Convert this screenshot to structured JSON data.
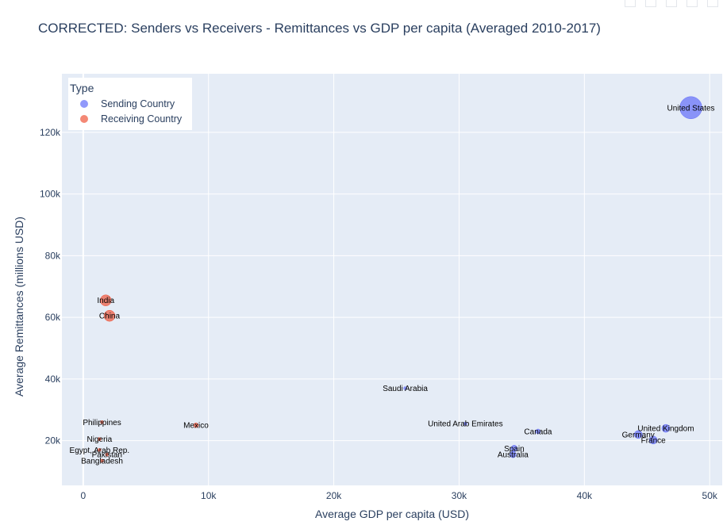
{
  "colors": {
    "plot_bg": "#e5ecf6",
    "grid": "#ffffff",
    "text": "#2a3f5f",
    "sending": "#636efa",
    "receiving": "#ef553b"
  },
  "legend": {
    "title": "Type",
    "items": [
      {
        "label": "Sending Country",
        "color": "#636efa"
      },
      {
        "label": "Receiving Country",
        "color": "#ef553b"
      }
    ]
  },
  "chart_data": {
    "type": "scatter",
    "title": "CORRECTED: Senders vs Receivers - Remittances vs GDP per capita (Averaged 2010-2017)",
    "xlabel": "Average GDP per capita (USD)",
    "ylabel": "Average Remittances (millions USD)",
    "xlim": [
      -1700,
      51000
    ],
    "ylim": [
      5500,
      139000
    ],
    "x_ticks": [
      0,
      10000,
      20000,
      30000,
      40000,
      50000
    ],
    "x_tick_labels": [
      "0",
      "10k",
      "20k",
      "30k",
      "40k",
      "50k"
    ],
    "y_ticks": [
      20000,
      40000,
      60000,
      80000,
      100000,
      120000
    ],
    "y_tick_labels": [
      "20k",
      "40k",
      "60k",
      "80k",
      "100k",
      "120k"
    ],
    "grid": true,
    "legend_position": "top-left",
    "series": [
      {
        "name": "Sending Country",
        "color": "#636efa",
        "points": [
          {
            "label": "United States",
            "x": 48500,
            "y": 128000,
            "size": 14
          },
          {
            "label": "Saudi Arabia",
            "x": 25700,
            "y": 37000,
            "size": 2
          },
          {
            "label": "United Arab Emirates",
            "x": 30500,
            "y": 25500,
            "size": 2
          },
          {
            "label": "Canada",
            "x": 36300,
            "y": 23000,
            "size": 3
          },
          {
            "label": "United Kingdom",
            "x": 46500,
            "y": 24000,
            "size": 5
          },
          {
            "label": "Germany",
            "x": 44300,
            "y": 22000,
            "size": 5
          },
          {
            "label": "France",
            "x": 45500,
            "y": 20200,
            "size": 5
          },
          {
            "label": "Spain",
            "x": 34400,
            "y": 17500,
            "size": 4
          },
          {
            "label": "Australia",
            "x": 34300,
            "y": 15500,
            "size": 4
          }
        ]
      },
      {
        "name": "Receiving Country",
        "color": "#ef553b",
        "points": [
          {
            "label": "India",
            "x": 1800,
            "y": 65500,
            "size": 7
          },
          {
            "label": "China",
            "x": 2100,
            "y": 60500,
            "size": 7
          },
          {
            "label": "Mexico",
            "x": 9000,
            "y": 25000,
            "size": 3
          },
          {
            "label": "Philippines",
            "x": 1500,
            "y": 26000,
            "size": 1
          },
          {
            "label": "Nigeria",
            "x": 1300,
            "y": 20500,
            "size": 1
          },
          {
            "label": "Egypt, Arab Rep.",
            "x": 1300,
            "y": 17000,
            "size": 1
          },
          {
            "label": "Pakistan",
            "x": 1900,
            "y": 15500,
            "size": 1
          },
          {
            "label": "Bangladesh",
            "x": 1500,
            "y": 13500,
            "size": 1
          }
        ]
      }
    ]
  }
}
